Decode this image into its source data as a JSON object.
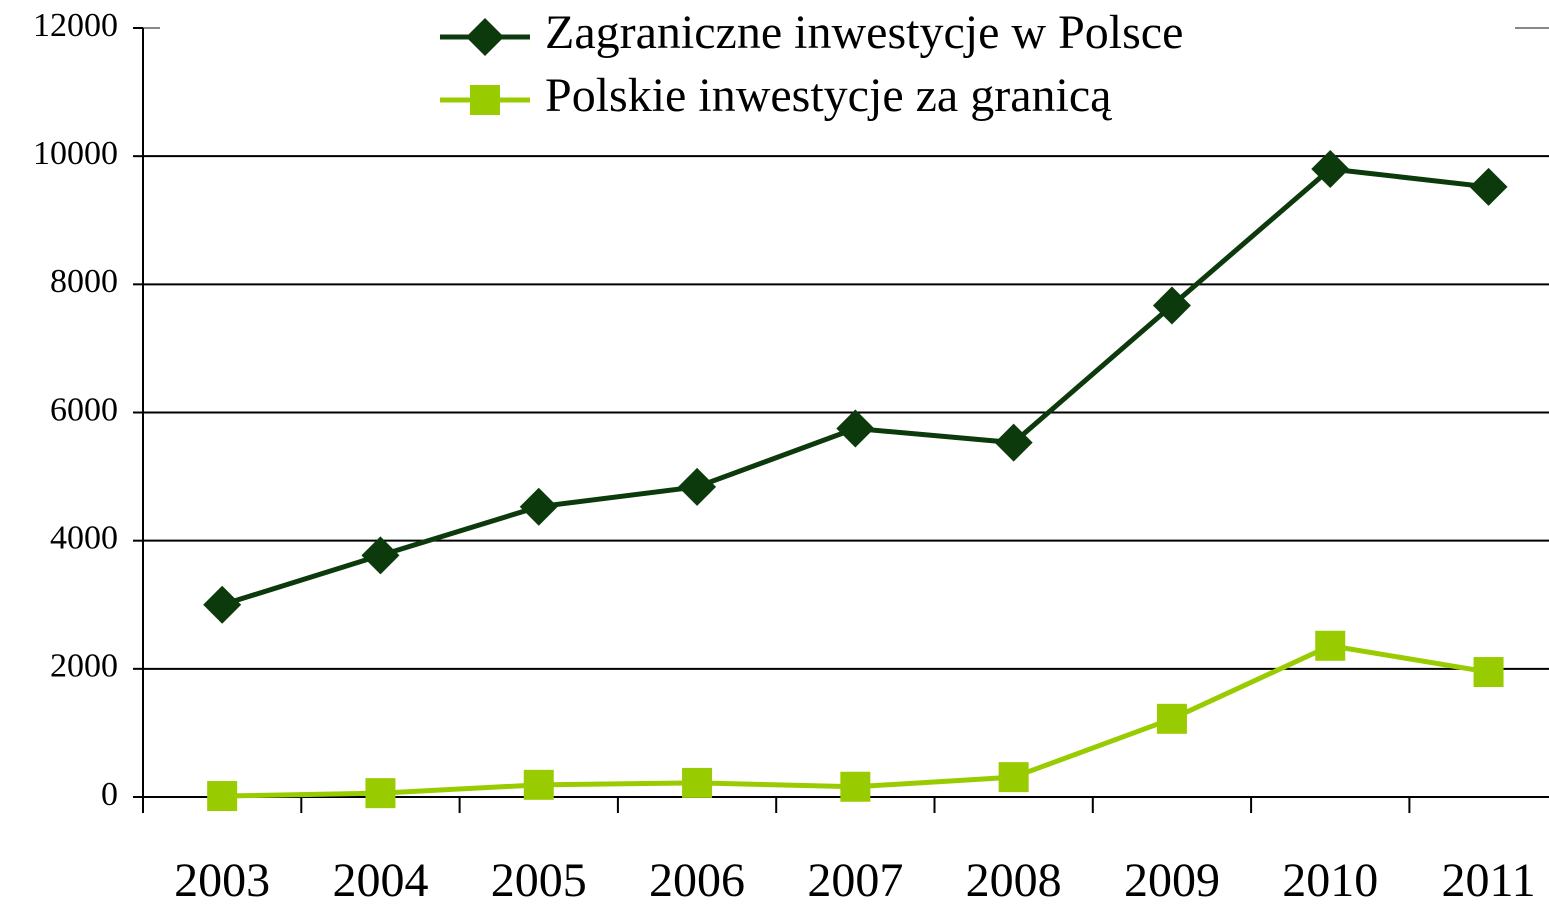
{
  "chart_data": {
    "type": "line",
    "categories": [
      "2003",
      "2004",
      "2005",
      "2006",
      "2007",
      "2008",
      "2009",
      "2010",
      "2011"
    ],
    "series": [
      {
        "name": "Zagraniczne inwestycje w Polsce",
        "color": "#0d3a0d",
        "marker": "diamond",
        "values": [
          3000,
          3770,
          4530,
          4840,
          5750,
          5530,
          7670,
          9800,
          9520
        ]
      },
      {
        "name": "Polskie inwestycje za granicą",
        "color": "#99cc00",
        "marker": "square",
        "values": [
          15,
          60,
          190,
          220,
          160,
          310,
          1220,
          2360,
          1950
        ]
      }
    ],
    "ylim": [
      0,
      12000
    ],
    "yticks": [
      0,
      2000,
      4000,
      6000,
      8000,
      10000,
      12000
    ],
    "grid": true,
    "legend": "top"
  }
}
